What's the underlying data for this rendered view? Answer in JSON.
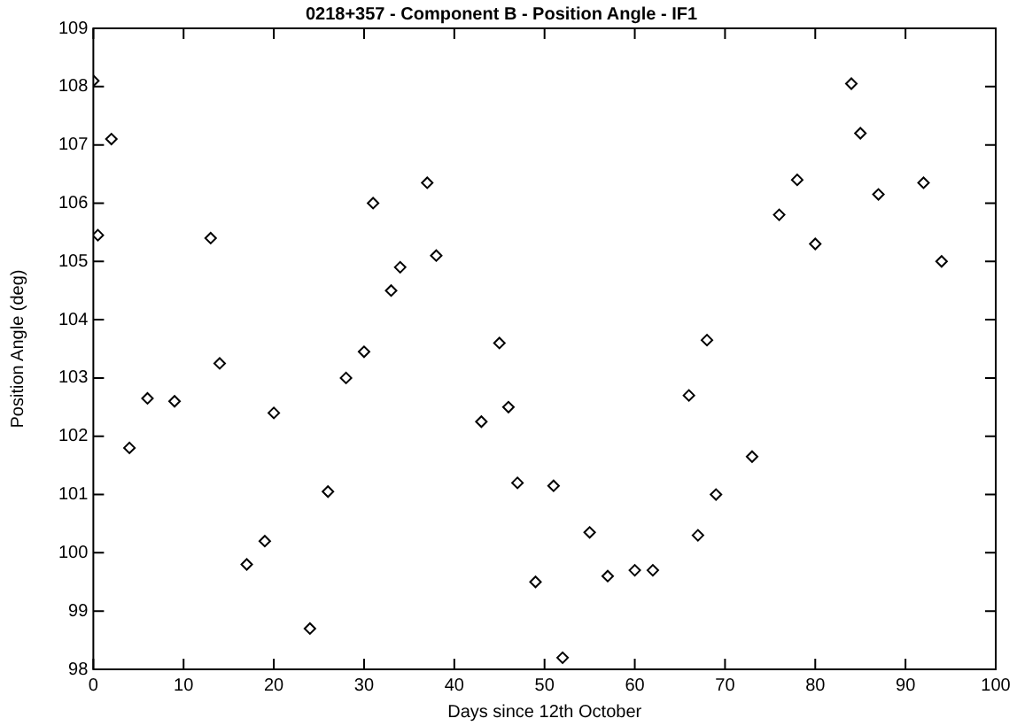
{
  "chart_data": {
    "type": "scatter",
    "title": "0218+357 - Component B - Position Angle - IF1",
    "xlabel": "Days since 12th October",
    "ylabel": "Position Angle (deg)",
    "x": [
      0,
      0.5,
      2,
      4,
      6,
      9,
      13,
      14,
      17,
      19,
      20,
      24,
      26,
      28,
      30,
      31,
      33,
      34,
      37,
      38,
      43,
      45,
      46,
      47,
      49,
      51,
      52,
      55,
      57,
      60,
      62,
      66,
      67,
      68,
      69,
      73,
      76,
      78,
      80,
      84,
      85,
      87,
      92,
      94
    ],
    "series": [
      {
        "color": "#000000",
        "values": [
          108.1,
          105.45,
          107.1,
          101.8,
          102.65,
          102.6,
          105.4,
          103.25,
          99.8,
          100.2,
          102.4,
          98.7,
          101.05,
          103.0,
          103.45,
          106.0,
          104.5,
          104.9,
          106.35,
          105.1,
          102.25,
          103.6,
          102.5,
          101.2,
          99.5,
          101.15,
          98.2,
          100.35,
          99.6,
          99.7,
          99.7,
          102.7,
          100.3,
          103.65,
          101.0,
          101.65,
          105.8,
          106.4,
          105.3,
          108.05,
          107.2,
          106.15,
          106.35,
          105.0
        ]
      }
    ],
    "xlim": [
      0,
      100
    ],
    "xticks": [
      0,
      10,
      20,
      30,
      40,
      50,
      60,
      70,
      80,
      90,
      100
    ],
    "ylim": [
      98,
      109
    ],
    "yticks": [
      98,
      99,
      100,
      101,
      102,
      103,
      104,
      105,
      106,
      107,
      108,
      109
    ],
    "grid": false,
    "legend": false,
    "marker": "diamond"
  }
}
